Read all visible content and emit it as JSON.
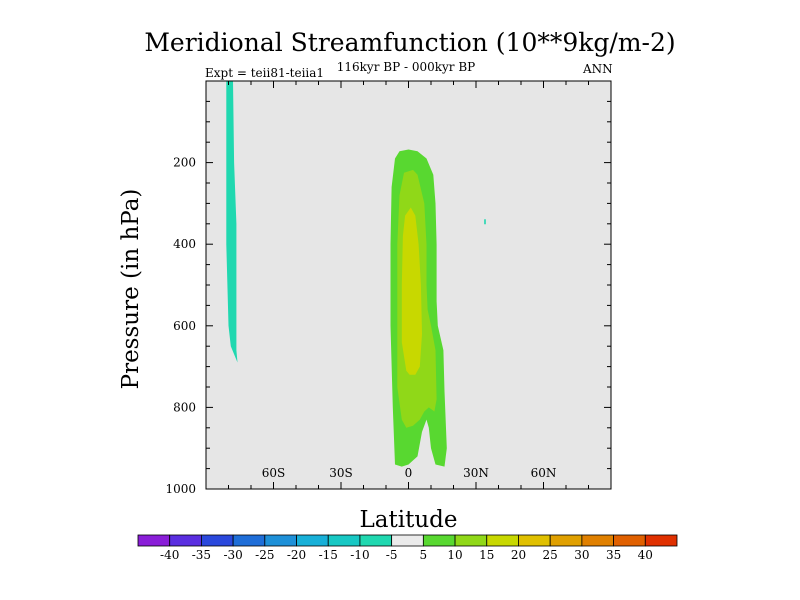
{
  "title": "Meridional Streamfunction (10**9kg/m-2)",
  "subtitle": "116kyr BP - 000kyr BP",
  "expt_label": "Expt = teii81-teiia1",
  "season": "ANN",
  "colors": {
    "background": "#e6e6e6",
    "level_colors": [
      "#8a1ed8",
      "#5a2ee0",
      "#2a48dc",
      "#1f6ed8",
      "#1e90d8",
      "#18b0d8",
      "#18c8c4",
      "#20d8b0",
      "#ebebeb",
      "#58d830",
      "#90d818",
      "#c8d800",
      "#e0c000",
      "#e0a000",
      "#e08000",
      "#e06000",
      "#e03000"
    ]
  },
  "chart_data": {
    "type": "contour-filled",
    "title": "Meridional Streamfunction (10**9kg/m-2)",
    "xlabel": "Latitude",
    "ylabel": "Pressure (in hPa)",
    "xlim": [
      -90,
      90
    ],
    "ylim": [
      1000,
      0
    ],
    "x_ticks": [
      {
        "value": -60,
        "label": "60S"
      },
      {
        "value": -30,
        "label": "30S"
      },
      {
        "value": 0,
        "label": "0"
      },
      {
        "value": 30,
        "label": "30N"
      },
      {
        "value": 60,
        "label": "60N"
      }
    ],
    "y_ticks": [
      200,
      400,
      600,
      800,
      1000
    ],
    "colorbar_levels": [
      -40,
      -35,
      -30,
      -25,
      -20,
      -15,
      -10,
      -5,
      5,
      10,
      15,
      20,
      25,
      30,
      35,
      40
    ],
    "regions": [
      {
        "name": "southern-negative-cell",
        "level": "-10 to -5",
        "color": "#20d8b0",
        "points": [
          [
            -81,
            0
          ],
          [
            -78,
            0
          ],
          [
            -77.5,
            200
          ],
          [
            -76.5,
            350
          ],
          [
            -76.5,
            500
          ],
          [
            -76.5,
            660
          ],
          [
            -76,
            690
          ],
          [
            -79,
            650
          ],
          [
            -80,
            600
          ],
          [
            -81,
            400
          ],
          [
            -81,
            200
          ]
        ]
      },
      {
        "name": "central-positive-outer",
        "level": "5 to 10",
        "color": "#58d830",
        "points": [
          [
            -6,
            940
          ],
          [
            -7,
            800
          ],
          [
            -8,
            600
          ],
          [
            -8,
            400
          ],
          [
            -7.5,
            260
          ],
          [
            -6,
            190
          ],
          [
            -4,
            172
          ],
          [
            0,
            168
          ],
          [
            4,
            172
          ],
          [
            8,
            190
          ],
          [
            11,
            230
          ],
          [
            12,
            300
          ],
          [
            12.5,
            400
          ],
          [
            12.5,
            540
          ],
          [
            13,
            600
          ],
          [
            15.5,
            660
          ],
          [
            16,
            760
          ],
          [
            17,
            900
          ],
          [
            16,
            945
          ],
          [
            12,
            940
          ],
          [
            10,
            900
          ],
          [
            9,
            850
          ],
          [
            8,
            830
          ],
          [
            6,
            860
          ],
          [
            4,
            920
          ],
          [
            0,
            940
          ],
          [
            -3,
            945
          ]
        ]
      },
      {
        "name": "central-positive-mid",
        "level": "10 to 15",
        "color": "#90d818",
        "points": [
          [
            -3,
            830
          ],
          [
            -5,
            750
          ],
          [
            -5,
            600
          ],
          [
            -5,
            400
          ],
          [
            -4,
            280
          ],
          [
            -2,
            225
          ],
          [
            2,
            218
          ],
          [
            4,
            230
          ],
          [
            7,
            300
          ],
          [
            8,
            400
          ],
          [
            8,
            500
          ],
          [
            8.5,
            560
          ],
          [
            10,
            600
          ],
          [
            12,
            660
          ],
          [
            12.5,
            780
          ],
          [
            11.5,
            810
          ],
          [
            9,
            800
          ],
          [
            7,
            810
          ],
          [
            5,
            830
          ],
          [
            2,
            845
          ],
          [
            -1,
            850
          ]
        ]
      },
      {
        "name": "central-positive-core",
        "level": "15 to 20",
        "color": "#c8d800",
        "points": [
          [
            -1,
            710
          ],
          [
            -3,
            640
          ],
          [
            -3,
            500
          ],
          [
            -2.5,
            380
          ],
          [
            -1.5,
            330
          ],
          [
            1,
            310
          ],
          [
            3,
            330
          ],
          [
            4.5,
            400
          ],
          [
            5.5,
            500
          ],
          [
            6,
            620
          ],
          [
            5,
            700
          ],
          [
            3,
            720
          ],
          [
            0.5,
            720
          ]
        ]
      }
    ],
    "dots": [
      {
        "x": 34,
        "y": 345,
        "color": "#20d8b0"
      }
    ]
  },
  "axes": {
    "xlabel": "Latitude",
    "ylabel": "Pressure (in hPa)"
  }
}
